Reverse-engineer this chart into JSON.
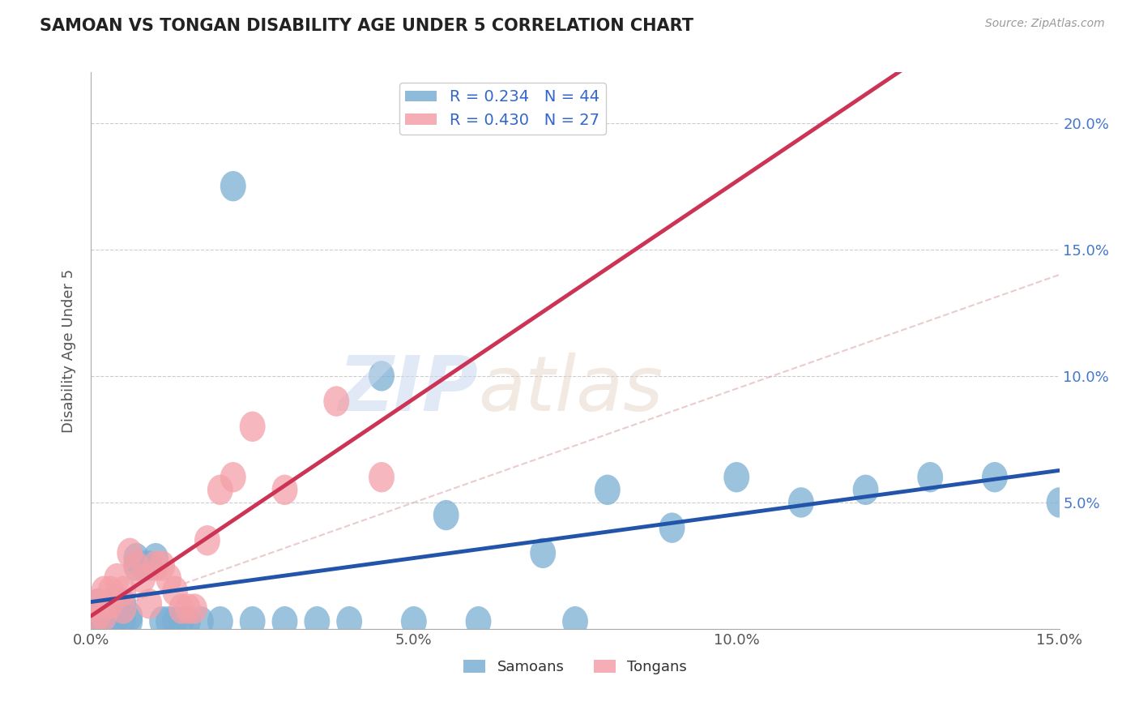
{
  "title": "SAMOAN VS TONGAN DISABILITY AGE UNDER 5 CORRELATION CHART",
  "source": "Source: ZipAtlas.com",
  "ylabel": "Disability Age Under 5",
  "xlim": [
    0.0,
    0.15
  ],
  "ylim": [
    0.0,
    0.22
  ],
  "yticks": [
    0.0,
    0.05,
    0.1,
    0.15,
    0.2
  ],
  "ytick_labels": [
    "",
    "5.0%",
    "10.0%",
    "15.0%",
    "20.0%"
  ],
  "xticks": [
    0.0,
    0.05,
    0.1,
    0.15
  ],
  "xtick_labels": [
    "0.0%",
    "5.0%",
    "10.0%",
    "15.0%"
  ],
  "samoan_color": "#7BAFD4",
  "tongan_color": "#F4A0A8",
  "samoan_line_color": "#2255AA",
  "tongan_line_color": "#CC3355",
  "samoan_dash_color": "#AABBDD",
  "R_samoan": 0.234,
  "N_samoan": 44,
  "R_tongan": 0.43,
  "N_tongan": 27,
  "watermark_zip": "ZIP",
  "watermark_atlas": "atlas",
  "background_color": "#FFFFFF",
  "grid_color": "#CCCCCC",
  "samoans_x": [
    0.001,
    0.001,
    0.002,
    0.002,
    0.003,
    0.003,
    0.003,
    0.004,
    0.004,
    0.005,
    0.005,
    0.006,
    0.006,
    0.007,
    0.007,
    0.008,
    0.009,
    0.01,
    0.011,
    0.012,
    0.013,
    0.014,
    0.015,
    0.017,
    0.02,
    0.022,
    0.025,
    0.03,
    0.035,
    0.04,
    0.045,
    0.05,
    0.06,
    0.07,
    0.08,
    0.09,
    0.1,
    0.11,
    0.12,
    0.13,
    0.14,
    0.15,
    0.055,
    0.075
  ],
  "samoans_y": [
    0.005,
    0.01,
    0.003,
    0.008,
    0.005,
    0.01,
    0.003,
    0.005,
    0.008,
    0.003,
    0.01,
    0.005,
    0.003,
    0.025,
    0.028,
    0.025,
    0.025,
    0.028,
    0.003,
    0.003,
    0.003,
    0.003,
    0.003,
    0.003,
    0.003,
    0.175,
    0.003,
    0.003,
    0.003,
    0.003,
    0.1,
    0.003,
    0.003,
    0.03,
    0.055,
    0.04,
    0.06,
    0.05,
    0.055,
    0.06,
    0.06,
    0.05,
    0.045,
    0.003
  ],
  "tongans_x": [
    0.001,
    0.001,
    0.002,
    0.002,
    0.003,
    0.003,
    0.004,
    0.005,
    0.005,
    0.006,
    0.007,
    0.008,
    0.009,
    0.01,
    0.011,
    0.012,
    0.013,
    0.014,
    0.015,
    0.016,
    0.018,
    0.02,
    0.022,
    0.025,
    0.03,
    0.038,
    0.045
  ],
  "tongans_y": [
    0.005,
    0.01,
    0.015,
    0.005,
    0.015,
    0.01,
    0.02,
    0.015,
    0.008,
    0.03,
    0.025,
    0.02,
    0.01,
    0.025,
    0.025,
    0.02,
    0.015,
    0.008,
    0.008,
    0.008,
    0.035,
    0.055,
    0.06,
    0.08,
    0.055,
    0.09,
    0.06
  ]
}
